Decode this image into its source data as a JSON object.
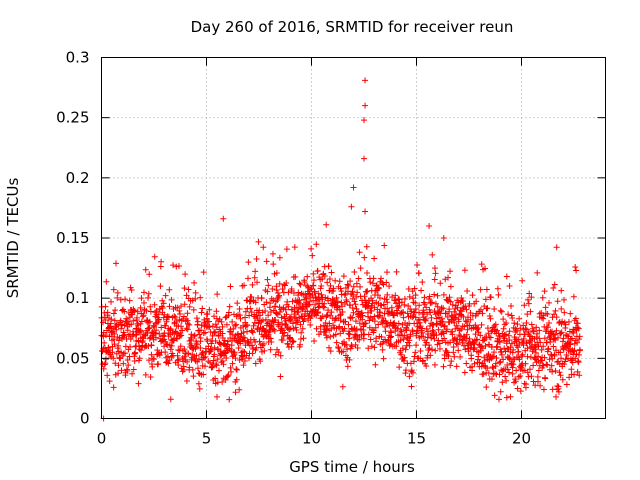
{
  "chart_data": {
    "type": "scatter",
    "title": "Day 260 of 2016, SRMTID for receiver reun",
    "xlabel": "GPS time / hours",
    "ylabel": "SRMTID / TECUs",
    "xlim": [
      0,
      24
    ],
    "ylim": [
      0,
      0.3
    ],
    "xticks": [
      0,
      5,
      10,
      15,
      20
    ],
    "yticks": [
      0,
      0.05,
      0.1,
      0.15,
      0.2,
      0.25,
      0.3
    ],
    "xtick_labels": [
      "0",
      "5",
      "10",
      "15",
      "20"
    ],
    "ytick_labels": [
      "0",
      "0.05",
      "0.1",
      "0.15",
      "0.2",
      "0.25",
      "0.3"
    ],
    "grid": true,
    "marker": "+",
    "color": "#ff0000",
    "approx_points": 2200,
    "x_range": [
      0,
      22.8
    ],
    "baseline_mean_trend": [
      {
        "x": 0,
        "y": 0.065
      },
      {
        "x": 2,
        "y": 0.072
      },
      {
        "x": 4,
        "y": 0.07
      },
      {
        "x": 5.8,
        "y": 0.055
      },
      {
        "x": 7,
        "y": 0.075
      },
      {
        "x": 9,
        "y": 0.09
      },
      {
        "x": 10.5,
        "y": 0.095
      },
      {
        "x": 11.5,
        "y": 0.08
      },
      {
        "x": 13,
        "y": 0.088
      },
      {
        "x": 15,
        "y": 0.07
      },
      {
        "x": 16.5,
        "y": 0.08
      },
      {
        "x": 18,
        "y": 0.065
      },
      {
        "x": 19,
        "y": 0.052
      },
      {
        "x": 21,
        "y": 0.06
      },
      {
        "x": 22.8,
        "y": 0.062
      }
    ],
    "highlight_points": [
      {
        "x": 12.55,
        "y": 0.281
      },
      {
        "x": 12.55,
        "y": 0.26
      },
      {
        "x": 12.5,
        "y": 0.248
      },
      {
        "x": 12.5,
        "y": 0.216
      },
      {
        "x": 12.0,
        "y": 0.192
      },
      {
        "x": 12.55,
        "y": 0.172
      },
      {
        "x": 11.9,
        "y": 0.176
      },
      {
        "x": 5.8,
        "y": 0.166
      },
      {
        "x": 10.7,
        "y": 0.161
      },
      {
        "x": 15.6,
        "y": 0.16
      },
      {
        "x": 16.3,
        "y": 0.15
      },
      {
        "x": 3.3,
        "y": 0.016
      },
      {
        "x": 5.5,
        "y": 0.018
      },
      {
        "x": 0.1,
        "y": 0.0
      },
      {
        "x": 19.3,
        "y": 0.118
      },
      {
        "x": 22.6,
        "y": 0.123
      }
    ]
  }
}
